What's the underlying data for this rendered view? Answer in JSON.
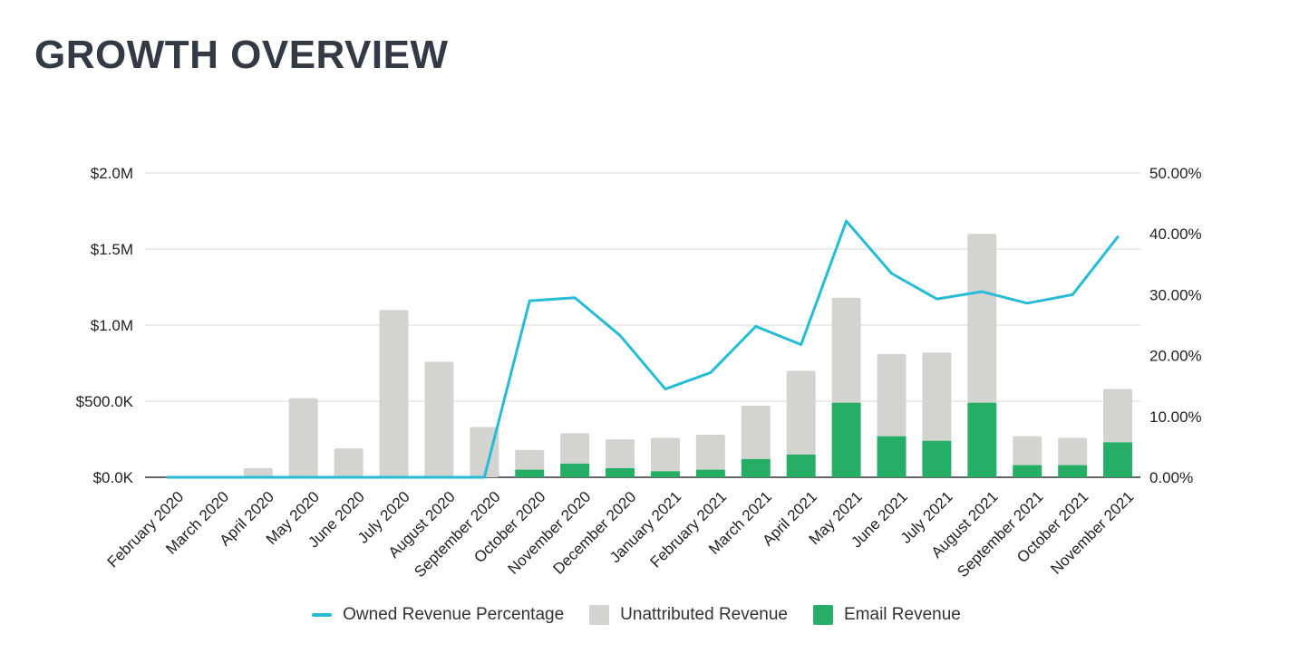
{
  "page": {
    "title": "GROWTH OVERVIEW"
  },
  "chart_data": {
    "type": "bar",
    "stacked": true,
    "categories": [
      "February 2020",
      "March 2020",
      "April 2020",
      "May 2020",
      "June 2020",
      "July 2020",
      "August 2020",
      "September 2020",
      "October 2020",
      "November 2020",
      "December 2020",
      "January 2021",
      "February 2021",
      "March 2021",
      "April 2021",
      "May 2021",
      "June 2021",
      "July 2021",
      "August 2021",
      "September 2021",
      "October 2021",
      "November 2021"
    ],
    "series": [
      {
        "name": "Email Revenue",
        "type": "bar",
        "axis": "left",
        "color": "#27ae66",
        "values": [
          0,
          0,
          0,
          0,
          0,
          0,
          0,
          0,
          50000,
          90000,
          60000,
          40000,
          50000,
          120000,
          150000,
          490000,
          270000,
          240000,
          490000,
          80000,
          80000,
          230000
        ]
      },
      {
        "name": "Unattributed Revenue",
        "type": "bar",
        "axis": "left",
        "color": "#d3d3d0",
        "values": [
          0,
          0,
          60000,
          520000,
          190000,
          1100000,
          760000,
          330000,
          130000,
          200000,
          190000,
          220000,
          230000,
          350000,
          550000,
          690000,
          540000,
          580000,
          1110000,
          190000,
          180000,
          350000
        ]
      },
      {
        "name": "Owned Revenue Percentage",
        "type": "line",
        "axis": "right",
        "color": "#26bcd5",
        "values": [
          0,
          0,
          0,
          0,
          0,
          0,
          0,
          0,
          29,
          29.5,
          23.3,
          14.5,
          17.2,
          24.8,
          21.8,
          42.1,
          33.5,
          29.3,
          30.5,
          28.6,
          30,
          39.5
        ]
      }
    ],
    "y_left": {
      "min": 0,
      "max": 2000000,
      "ticks": [
        "$0.0K",
        "$500.0K",
        "$1.0M",
        "$1.5M",
        "$2.0M"
      ]
    },
    "y_right": {
      "min": 0,
      "max": 50,
      "ticks": [
        "0.00%",
        "10.00%",
        "20.00%",
        "30.00%",
        "40.00%",
        "50.00%"
      ]
    },
    "grid": true,
    "legend_position": "bottom",
    "legend": [
      "Owned Revenue Percentage",
      "Unattributed Revenue",
      "Email Revenue"
    ]
  }
}
